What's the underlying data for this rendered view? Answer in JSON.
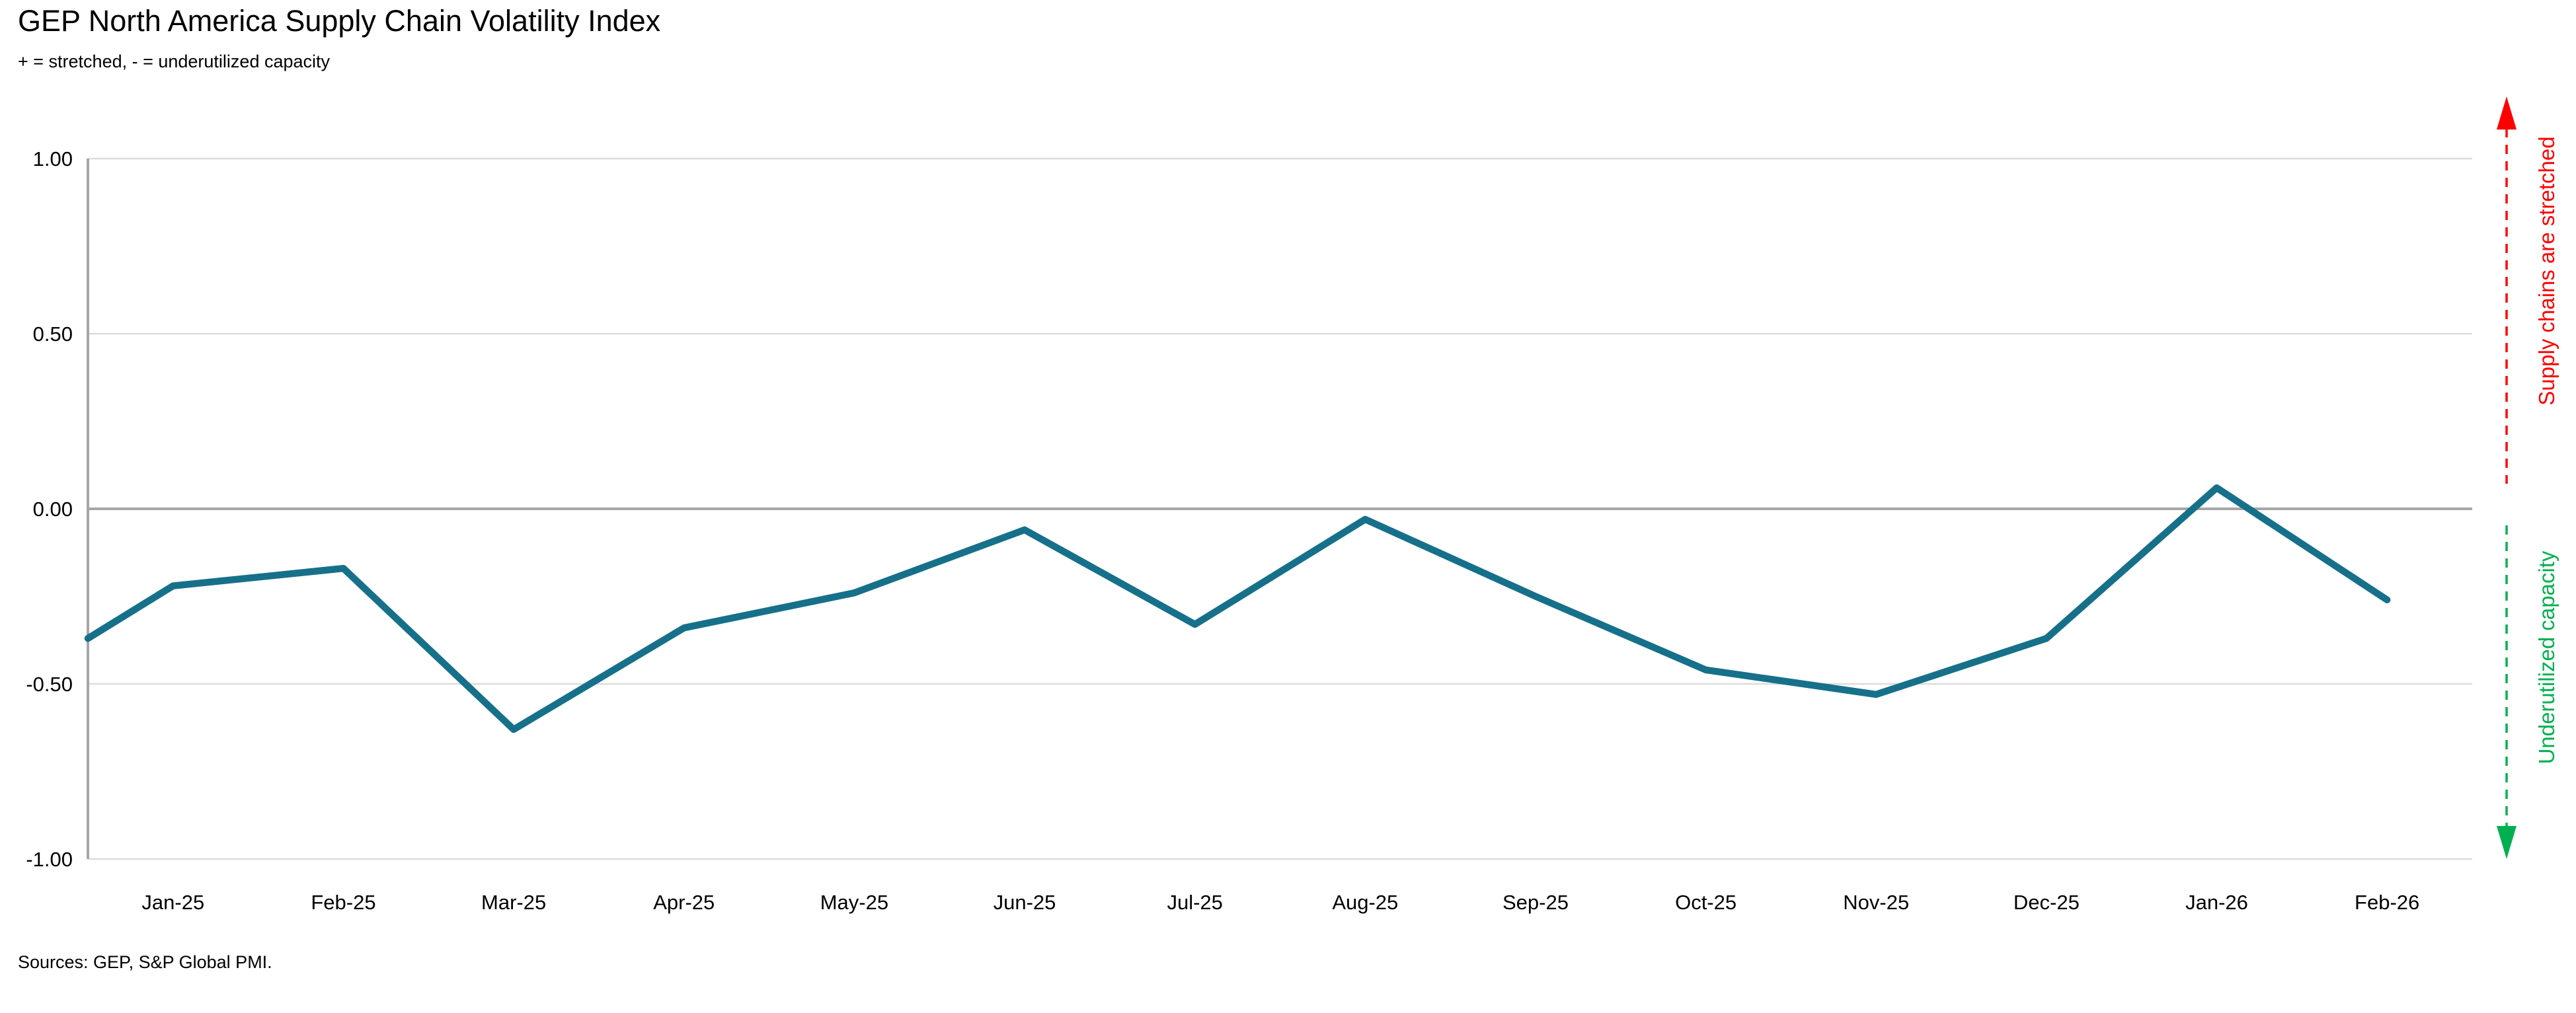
{
  "header": {
    "title": "GEP North America Supply Chain Volatility Index",
    "subtitle": "+ = stretched, - = underutilized capacity"
  },
  "footer": {
    "sources": "Sources: GEP, S&P Global PMI."
  },
  "annotations": {
    "stretched": {
      "label": "Supply chains are stretched",
      "color": "#FF0000"
    },
    "underutilized": {
      "label": "Underutilized capacity",
      "color": "#00B050"
    }
  },
  "chart_data": {
    "type": "line",
    "title": "GEP North America Supply Chain Volatility Index",
    "subtitle": "+ = stretched, - = underutilized capacity",
    "categories": [
      "Jan-25",
      "Feb-25",
      "Mar-25",
      "Apr-25",
      "May-25",
      "Jun-25",
      "Jul-25",
      "Aug-25",
      "Sep-25",
      "Oct-25",
      "Nov-25",
      "Dec-25",
      "Jan-26",
      "Feb-26"
    ],
    "series": [
      {
        "name": "GEP North America Supply Chain Volatility Index",
        "values": [
          -0.22,
          -0.17,
          -0.63,
          -0.34,
          -0.24,
          -0.06,
          -0.33,
          -0.03,
          -0.25,
          -0.46,
          -0.53,
          -0.37,
          0.06,
          -0.26
        ]
      }
    ],
    "edge_start_value": -0.37,
    "edge_start_note": "line enters plot at the left boundary, half a category before Jan-25",
    "xlabel": "",
    "ylabel": "",
    "ylim": [
      -1.0,
      1.0
    ],
    "yticks": [
      1.0,
      0.5,
      0.0,
      -0.5,
      -1.0
    ],
    "ytick_labels": [
      "1.00",
      "0.50",
      "0.00",
      "-0.50",
      "-1.00"
    ],
    "grid": "horizontal gridlines at every y tick; 0.00 line emphasized",
    "legend_position": "none",
    "line_color": "#17708A",
    "zero_line_color": "#A6A6A6",
    "axis_color": "#A6A6A6",
    "grid_color": "#DCDCDC",
    "tick_label_color": "#000000"
  }
}
